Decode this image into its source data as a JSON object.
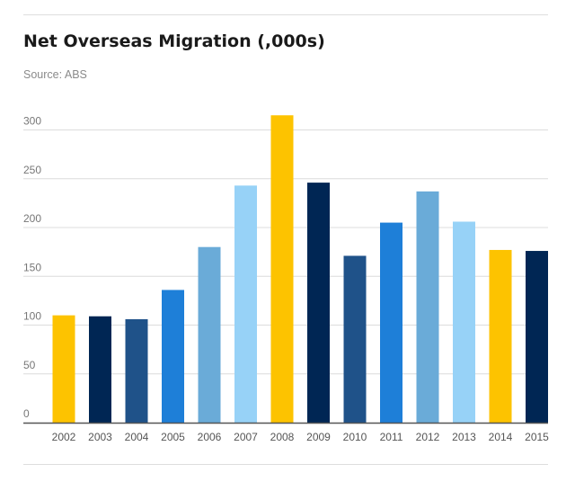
{
  "header": {
    "title": "Net Overseas Migration (,000s)",
    "source": "Source: ABS"
  },
  "chart_data": {
    "type": "bar",
    "title": "Net Overseas Migration (,000s)",
    "subtitle": "Source: ABS",
    "xlabel": "",
    "ylabel": "",
    "categories": [
      "2002",
      "2003",
      "2004",
      "2005",
      "2006",
      "2007",
      "2008",
      "2009",
      "2010",
      "2011",
      "2012",
      "2013",
      "2014",
      "2015"
    ],
    "values": [
      110,
      109,
      106,
      136,
      180,
      243,
      315,
      246,
      171,
      205,
      237,
      206,
      177,
      176
    ],
    "bar_colors": [
      "#fdc300",
      "#002654",
      "#1f5289",
      "#1e7fd8",
      "#6aabd8",
      "#97d2f7",
      "#fdc300",
      "#002654",
      "#1f5289",
      "#1e7fd8",
      "#6aabd8",
      "#97d2f7",
      "#fdc300",
      "#002654"
    ],
    "ylim": [
      0,
      325
    ],
    "yticks": [
      0,
      50,
      100,
      150,
      200,
      250,
      300
    ],
    "grid": true,
    "legend": "none"
  },
  "colors": {
    "gridline": "#dcdcdc",
    "baseline": "#555555",
    "tick_label": "#777777",
    "x_label": "#555555"
  }
}
